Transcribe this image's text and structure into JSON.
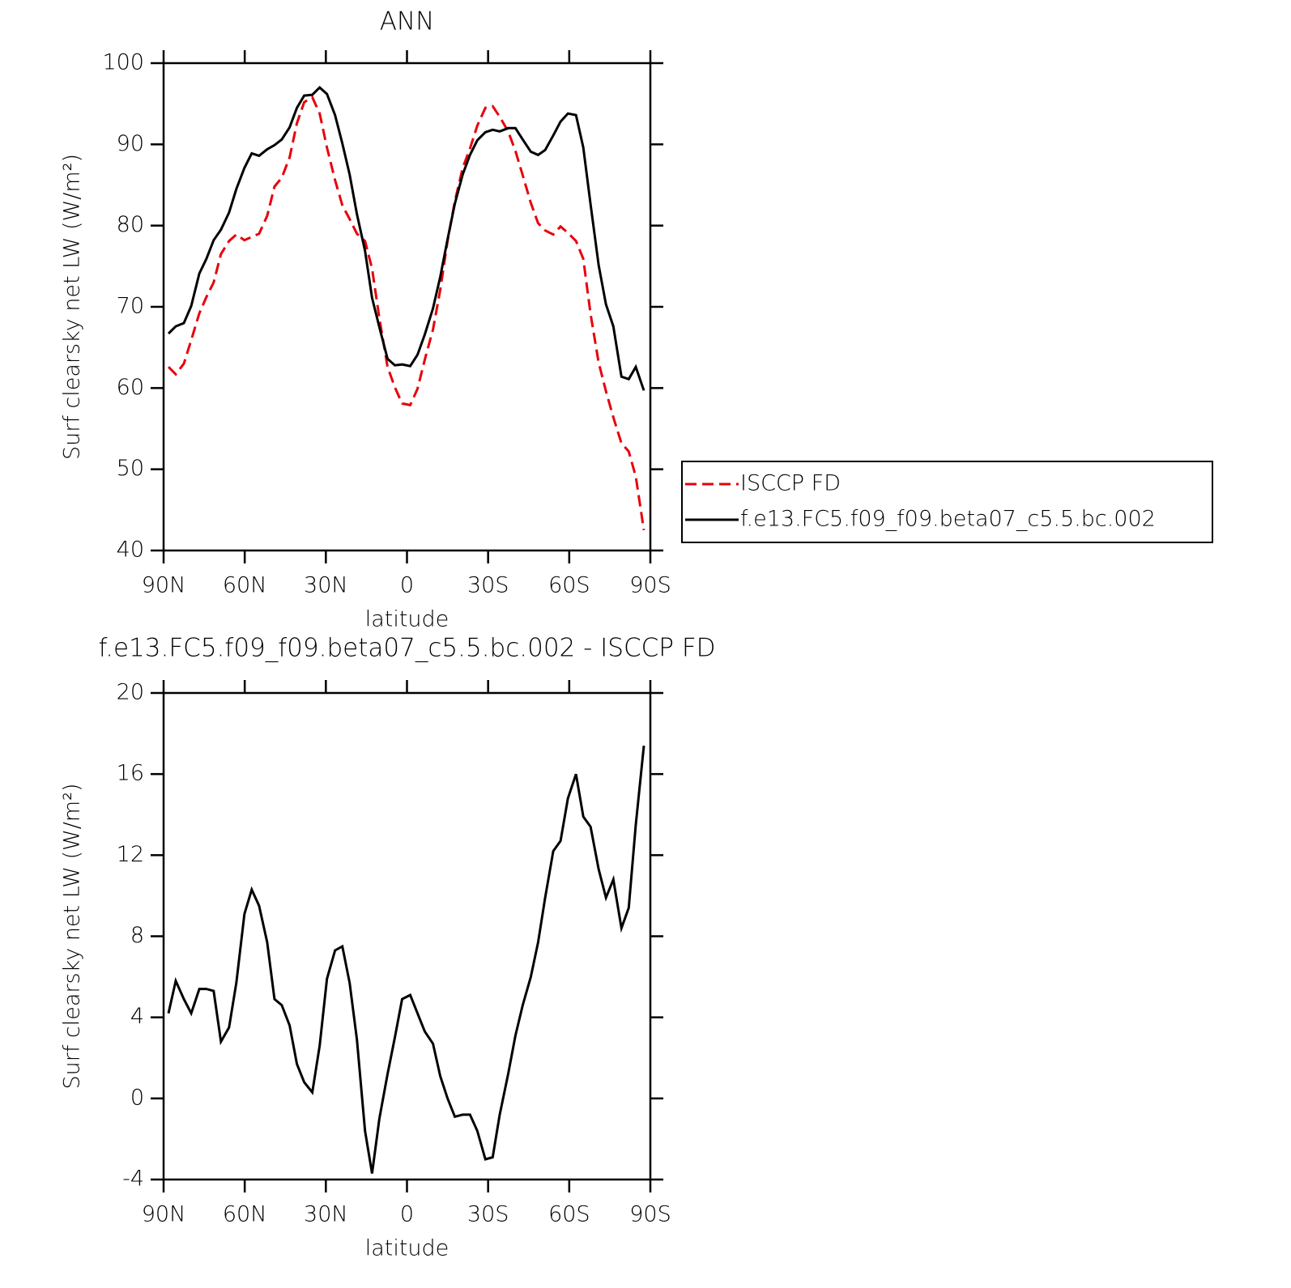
{
  "chart_data": [
    {
      "type": "line",
      "title": "ANN",
      "xlabel": "latitude",
      "ylabel": "Surf clearsky net LW (W/m²)",
      "x": [
        88.2,
        85.5,
        82.5,
        79.8,
        76.8,
        74.2,
        71.5,
        68.8,
        65.8,
        63.1,
        60.1,
        57.4,
        54.7,
        51.7,
        49.0,
        46.3,
        43.4,
        40.7,
        38.0,
        35.0,
        32.3,
        29.6,
        26.6,
        23.9,
        21.2,
        18.5,
        15.5,
        12.9,
        10.2,
        7.2,
        4.5,
        1.8,
        -1.2,
        -3.9,
        -6.6,
        -9.6,
        -12.3,
        -15.0,
        -17.7,
        -20.6,
        -23.3,
        -26.0,
        -29.0,
        -31.7,
        -34.3,
        -37.4,
        -40.1,
        -42.8,
        -45.8,
        -48.5,
        -51.1,
        -54.1,
        -56.8,
        -59.5,
        -62.5,
        -65.2,
        -67.9,
        -70.9,
        -73.6,
        -76.3,
        -79.3,
        -82.0,
        -84.6,
        -87.6
      ],
      "series": [
        {
          "name": "ISCCP FD",
          "color": "#e8000b",
          "dashed": true,
          "values": [
            62.6,
            61.7,
            63.0,
            65.9,
            69.2,
            71.2,
            73.0,
            76.5,
            78.1,
            78.9,
            78.2,
            78.6,
            79.0,
            81.2,
            84.8,
            85.9,
            88.4,
            92.6,
            95.2,
            95.8,
            93.8,
            89.6,
            85.6,
            82.5,
            80.8,
            79.0,
            78.1,
            74.7,
            68.6,
            62.6,
            60.1,
            58.1,
            57.9,
            59.9,
            63.5,
            67.2,
            72.1,
            78.1,
            83.0,
            87.1,
            89.5,
            92.3,
            94.5,
            94.7,
            93.4,
            91.6,
            89.2,
            86.2,
            82.8,
            80.3,
            79.4,
            78.9,
            79.9,
            79.1,
            78.1,
            75.9,
            69.1,
            63.1,
            59.6,
            56.4,
            53.2,
            52.2,
            49.1,
            42.5
          ]
        },
        {
          "name": "f.e13.FC5.f09_f09.beta07_c5.5.bc.002",
          "color": "#000000",
          "dashed": false,
          "values": [
            66.7,
            67.6,
            68.0,
            70.1,
            74.1,
            75.9,
            78.2,
            79.5,
            81.6,
            84.5,
            87.1,
            88.9,
            88.6,
            89.4,
            89.9,
            90.6,
            92.1,
            94.5,
            96.0,
            96.1,
            97.0,
            96.2,
            93.6,
            90.1,
            86.3,
            81.4,
            76.9,
            71.1,
            67.5,
            63.6,
            62.8,
            62.9,
            62.7,
            64.1,
            66.6,
            69.8,
            73.7,
            78.3,
            82.7,
            86.3,
            88.7,
            90.5,
            91.5,
            91.8,
            91.6,
            92.0,
            92.0,
            90.6,
            89.1,
            88.7,
            89.3,
            91.1,
            92.8,
            93.8,
            93.6,
            89.6,
            82.6,
            75.1,
            70.3,
            67.6,
            61.4,
            61.1,
            62.6,
            59.7
          ]
        }
      ],
      "xlim": [
        90,
        -90
      ],
      "xticks": [
        {
          "value": 90,
          "label": "90N"
        },
        {
          "value": 60,
          "label": "60N"
        },
        {
          "value": 30,
          "label": "30N"
        },
        0,
        {
          "value": -30,
          "label": "30S"
        },
        {
          "value": -60,
          "label": "60S"
        },
        {
          "value": -90,
          "label": "90S"
        }
      ],
      "ylim": [
        40,
        100
      ],
      "yticks": [
        40,
        50,
        60,
        70,
        80,
        90,
        100
      ],
      "legend": "right"
    },
    {
      "type": "line",
      "title": "f.e13.FC5.f09_f09.beta07_c5.5.bc.002 - ISCCP FD",
      "xlabel": "latitude",
      "ylabel": "Surf clearsky net LW (W/m²)",
      "x": [
        88.2,
        85.5,
        82.5,
        79.8,
        76.8,
        74.2,
        71.5,
        68.8,
        65.8,
        63.1,
        60.1,
        57.4,
        54.7,
        51.7,
        49.0,
        46.3,
        43.4,
        40.7,
        38.0,
        35.0,
        32.3,
        29.6,
        26.6,
        23.9,
        21.2,
        18.5,
        15.5,
        12.9,
        10.2,
        7.2,
        4.5,
        1.8,
        -1.2,
        -3.9,
        -6.6,
        -9.6,
        -12.3,
        -15.0,
        -17.7,
        -20.6,
        -23.3,
        -26.0,
        -29.0,
        -31.7,
        -34.3,
        -37.4,
        -40.1,
        -42.8,
        -45.8,
        -48.5,
        -51.1,
        -54.1,
        -56.8,
        -59.5,
        -62.5,
        -65.2,
        -67.9,
        -70.9,
        -73.6,
        -76.3,
        -79.3,
        -82.0,
        -84.6,
        -87.6
      ],
      "series": [
        {
          "color": "#000000",
          "dashed": false,
          "values": [
            4.2,
            5.8,
            4.9,
            4.2,
            5.4,
            5.4,
            5.3,
            2.8,
            3.5,
            5.7,
            9.1,
            10.3,
            9.5,
            7.7,
            4.9,
            4.6,
            3.6,
            1.7,
            0.8,
            0.3,
            2.6,
            5.9,
            7.3,
            7.5,
            5.7,
            2.9,
            -1.6,
            -3.7,
            -1.0,
            1.2,
            3.0,
            4.9,
            5.1,
            4.2,
            3.3,
            2.7,
            1.1,
            0.0,
            -0.9,
            -0.8,
            -0.8,
            -1.6,
            -3.0,
            -2.9,
            -0.8,
            1.2,
            3.1,
            4.6,
            6.0,
            7.7,
            9.9,
            12.2,
            12.7,
            14.8,
            16.0,
            13.9,
            13.4,
            11.3,
            9.9,
            10.8,
            8.4,
            9.4,
            13.5,
            17.4
          ]
        }
      ],
      "xlim": [
        90,
        -90
      ],
      "xticks": [
        {
          "value": 90,
          "label": "90N"
        },
        {
          "value": 60,
          "label": "60N"
        },
        {
          "value": 30,
          "label": "30N"
        },
        0,
        {
          "value": -30,
          "label": "30S"
        },
        {
          "value": -60,
          "label": "60S"
        },
        {
          "value": -90,
          "label": "90S"
        }
      ],
      "ylim": [
        -4,
        20
      ],
      "yticks": [
        -4,
        0,
        4,
        8,
        12,
        16,
        20
      ]
    }
  ]
}
